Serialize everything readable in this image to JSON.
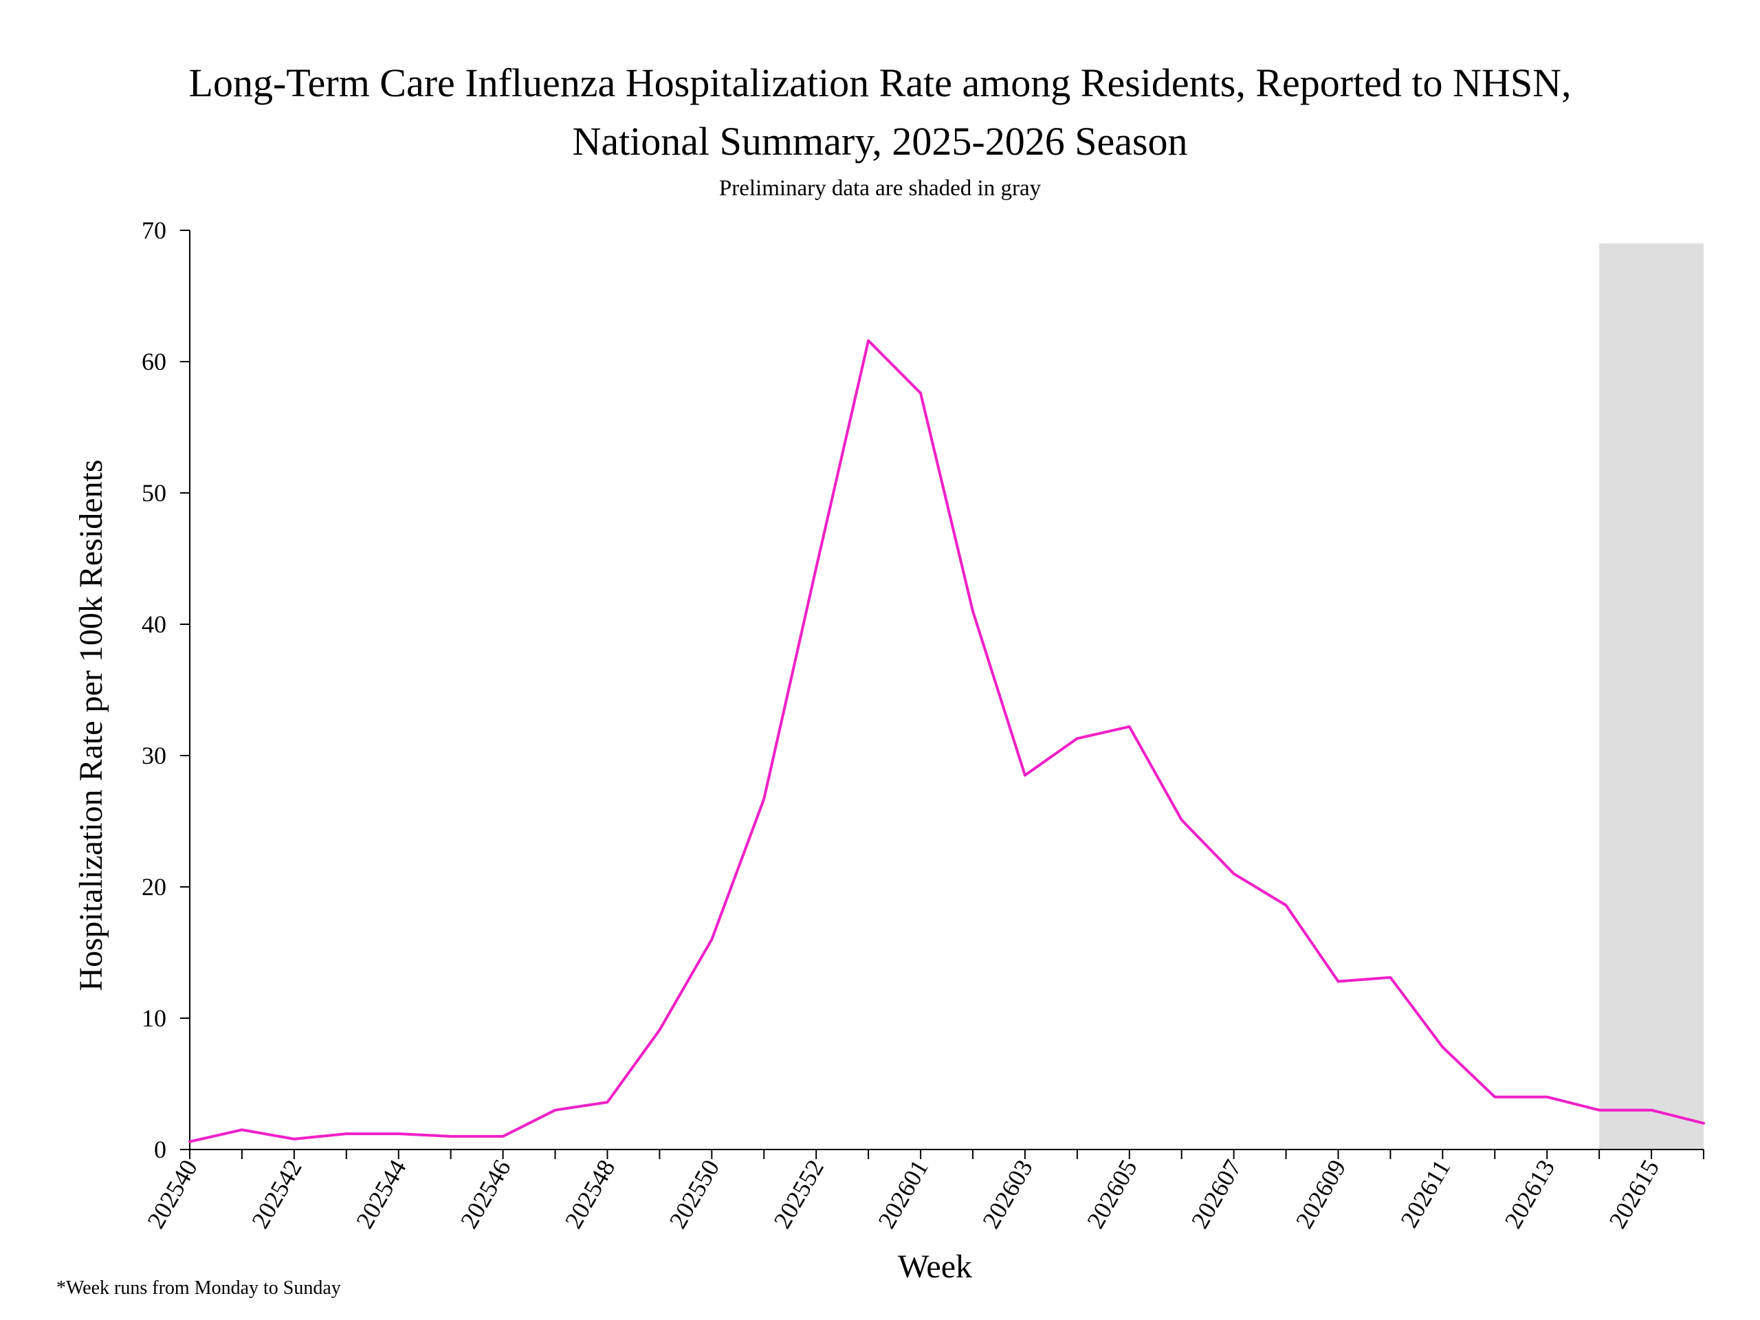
{
  "chart_data": {
    "type": "line",
    "title_line1": "Long-Term Care Influenza Hospitalization Rate among Residents, Reported to NHSN,",
    "title_line2": "National Summary, 2025-2026 Season",
    "subtitle": "Preliminary data are shaded in gray",
    "xlabel": "Week",
    "ylabel": "Hospitalization Rate per 100k Residents",
    "footnote": "*Week runs from Monday to Sunday",
    "ylim": [
      0,
      70
    ],
    "yticks": [
      0,
      10,
      20,
      30,
      40,
      50,
      60,
      70
    ],
    "x": [
      "202540",
      "202541",
      "202542",
      "202543",
      "202544",
      "202545",
      "202546",
      "202547",
      "202548",
      "202549",
      "202550",
      "202551",
      "202552",
      "202553",
      "202601",
      "202602",
      "202603",
      "202604",
      "202605",
      "202606",
      "202607",
      "202608",
      "202609",
      "202610",
      "202611",
      "202612",
      "202613",
      "202614",
      "202615",
      "202616"
    ],
    "xtick_labels": [
      "202540",
      "202542",
      "202544",
      "202546",
      "202548",
      "202550",
      "202552",
      "202601",
      "202603",
      "202605",
      "202607",
      "202609",
      "202611",
      "202613",
      "202615"
    ],
    "preliminary_from": "202614",
    "preliminary_shading_color": "#dedede",
    "grid": false,
    "series": [
      {
        "color": "#f020c8",
        "values": [
          0.6,
          1.5,
          0.8,
          1.2,
          1.2,
          1.0,
          1.0,
          3.0,
          3.6,
          9.1,
          16.0,
          26.7,
          44.3,
          61.6,
          57.6,
          41.0,
          28.5,
          31.3,
          32.2,
          25.1,
          21.0,
          18.6,
          12.8,
          13.1,
          7.8,
          4.0,
          4.0,
          3.0,
          3.0,
          2.0
        ]
      }
    ]
  }
}
